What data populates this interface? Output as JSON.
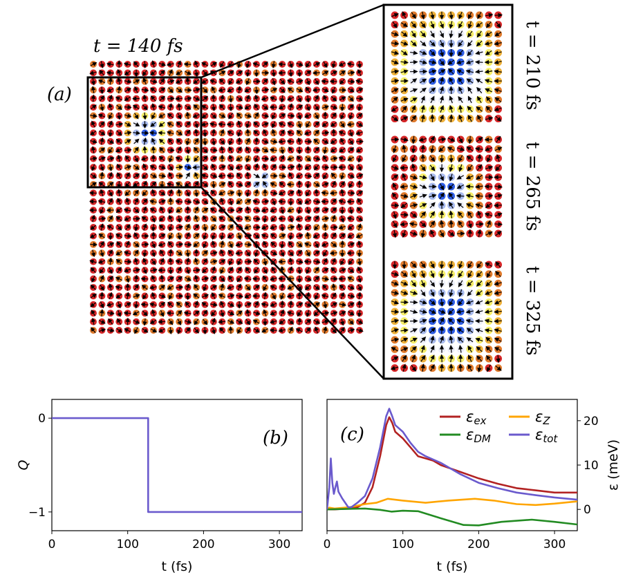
{
  "panel_a": {
    "label": "(a)",
    "main_time": "t = 140 fs",
    "inset_times": [
      "t = 210 fs",
      "t = 265 fs",
      "t = 325 fs"
    ]
  },
  "colors": {
    "red": "#d8282a",
    "orange": "#e07a2c",
    "gold": "#eeb13a",
    "yellow": "#f6ee6a",
    "pale": "#eef0fa",
    "lightblue": "#a9bbee",
    "blue": "#2f5ee6",
    "ex": "#b22222",
    "Z": "#ffa500",
    "DM": "#228b22",
    "tot": "#6a5acd"
  },
  "chart_data": [
    {
      "type": "line",
      "panel_label": "(b)",
      "xlabel": "t (fs)",
      "ylabel": "Q",
      "xlim": [
        0,
        330
      ],
      "ylim": [
        -1.2,
        0.2
      ],
      "xticks": [
        0,
        100,
        200,
        300
      ],
      "yticks": [
        0,
        -1
      ],
      "ytick_labels": [
        "0",
        "−1"
      ],
      "grid": false,
      "series": [
        {
          "name": "Q",
          "color": "#6a5acd",
          "x": [
            0,
            127,
            127,
            330
          ],
          "y": [
            0,
            0,
            -1,
            -1
          ]
        }
      ]
    },
    {
      "type": "line",
      "panel_label": "(c)",
      "xlabel": "t (fs)",
      "ylabel": "ε (meV)",
      "xlim": [
        0,
        330
      ],
      "ylim": [
        -4.8,
        24.8
      ],
      "xticks": [
        0,
        100,
        200,
        300
      ],
      "yticks": [
        0,
        10,
        20
      ],
      "y_axis_side": "right",
      "grid": false,
      "legend": {
        "placement": "top-right",
        "columns": 2
      },
      "series": [
        {
          "name": "ε",
          "sub": "ex",
          "color": "#b22222",
          "x": [
            0,
            10,
            20,
            30,
            40,
            50,
            60,
            70,
            78,
            82,
            86,
            90,
            100,
            110,
            120,
            130,
            140,
            150,
            175,
            200,
            225,
            250,
            275,
            300,
            330
          ],
          "y": [
            0,
            0,
            0.1,
            0.2,
            0.5,
            1.5,
            5,
            12,
            19,
            20.8,
            19.5,
            17.5,
            16,
            14,
            12,
            11.5,
            11,
            10,
            8.5,
            7,
            5.8,
            4.8,
            4.3,
            3.8,
            3.8
          ]
        },
        {
          "name": "ε",
          "sub": "Z",
          "color": "#ffa500",
          "x": [
            0,
            3,
            10,
            30,
            50,
            65,
            80,
            100,
            130,
            160,
            195,
            220,
            250,
            275,
            300,
            330
          ],
          "y": [
            0,
            0.4,
            0.2,
            0.5,
            1.2,
            1.5,
            2.4,
            2,
            1.5,
            2,
            2.4,
            2,
            1.2,
            1,
            1.3,
            1.8
          ]
        },
        {
          "name": "ε",
          "sub": "DM",
          "color": "#228b22",
          "x": [
            0,
            50,
            70,
            85,
            100,
            120,
            150,
            180,
            200,
            230,
            270,
            300,
            330
          ],
          "y": [
            0,
            0.2,
            -0.1,
            -0.5,
            -0.3,
            -0.4,
            -2,
            -3.5,
            -3.6,
            -2.8,
            -2.3,
            -2.8,
            -3.4
          ]
        },
        {
          "name": "ε",
          "sub": "tot",
          "color": "#6a5acd",
          "x": [
            0,
            3,
            5,
            7,
            9,
            11,
            13,
            15,
            20,
            28,
            32,
            40,
            50,
            60,
            70,
            78,
            82,
            86,
            90,
            100,
            110,
            120,
            130,
            150,
            175,
            200,
            225,
            250,
            275,
            300,
            330
          ],
          "y": [
            0,
            5,
            11.5,
            6,
            3.5,
            5,
            6.3,
            4,
            2.5,
            0.5,
            0.5,
            1.5,
            3,
            7,
            14,
            21,
            22.7,
            21,
            19,
            17.5,
            15,
            13,
            12,
            10.5,
            8,
            6,
            4.8,
            3.8,
            3.2,
            2.7,
            2.2
          ]
        }
      ]
    }
  ]
}
